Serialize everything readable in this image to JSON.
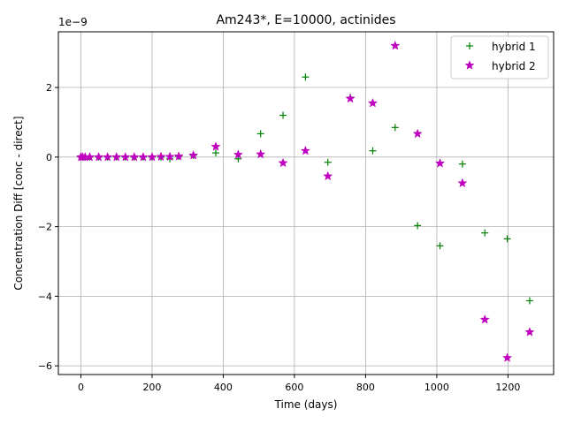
{
  "chart_data": {
    "type": "scatter",
    "title": "Am243*, E=10000, actinides",
    "xlabel": "Time (days)",
    "ylabel": "Concentration Diff [conc - direct]",
    "y_offset_label": "1e−9",
    "y_scale_factor": 1e-09,
    "xlim": [
      -63.25,
      1328.25
    ],
    "ylim": [
      -6.25,
      3.6
    ],
    "x_ticks": [
      0,
      200,
      400,
      600,
      800,
      1000,
      1200
    ],
    "x_tick_labels": [
      "0",
      "200",
      "400",
      "600",
      "800",
      "1000",
      "1200"
    ],
    "y_ticks": [
      -6,
      -4,
      -2,
      0,
      2
    ],
    "y_tick_labels": [
      "−6",
      "−4",
      "−2",
      "0",
      "2"
    ],
    "grid": true,
    "legend_position": "top-right",
    "series": [
      {
        "name": "hybrid 1",
        "marker": "plus",
        "color": "#008000",
        "points": [
          [
            0,
            0
          ],
          [
            5,
            0
          ],
          [
            12,
            0
          ],
          [
            25,
            0
          ],
          [
            50,
            0
          ],
          [
            75,
            0
          ],
          [
            100,
            0
          ],
          [
            125,
            0
          ],
          [
            150,
            0
          ],
          [
            175,
            0
          ],
          [
            200,
            0
          ],
          [
            225,
            0
          ],
          [
            250,
            -0.05
          ],
          [
            275,
            0.02
          ],
          [
            316,
            0.05
          ],
          [
            379,
            0.12
          ],
          [
            442,
            -0.05
          ],
          [
            505,
            0.67
          ],
          [
            568,
            1.2
          ],
          [
            631,
            2.3
          ],
          [
            694,
            -0.15
          ],
          [
            757,
            1.72
          ],
          [
            820,
            0.18
          ],
          [
            883,
            0.85
          ],
          [
            946,
            -1.97
          ],
          [
            1009,
            -2.55
          ],
          [
            1072,
            -0.2
          ],
          [
            1135,
            -2.18
          ],
          [
            1198,
            -2.35
          ],
          [
            1261,
            -4.13
          ]
        ]
      },
      {
        "name": "hybrid 2",
        "marker": "star",
        "color": "#bf00bf",
        "points": [
          [
            0,
            0
          ],
          [
            5,
            0
          ],
          [
            12,
            0
          ],
          [
            25,
            0
          ],
          [
            50,
            0
          ],
          [
            75,
            0
          ],
          [
            100,
            0
          ],
          [
            125,
            0
          ],
          [
            150,
            0
          ],
          [
            175,
            0
          ],
          [
            200,
            0
          ],
          [
            225,
            0.01
          ],
          [
            250,
            0.01
          ],
          [
            275,
            0.02
          ],
          [
            316,
            0.05
          ],
          [
            379,
            0.3
          ],
          [
            442,
            0.07
          ],
          [
            505,
            0.08
          ],
          [
            568,
            -0.17
          ],
          [
            631,
            0.18
          ],
          [
            694,
            -0.55
          ],
          [
            757,
            1.68
          ],
          [
            820,
            1.55
          ],
          [
            883,
            3.2
          ],
          [
            946,
            0.67
          ],
          [
            1009,
            -0.18
          ],
          [
            1072,
            -0.75
          ],
          [
            1135,
            -4.67
          ],
          [
            1198,
            -5.77
          ],
          [
            1261,
            -5.03
          ]
        ]
      }
    ]
  }
}
